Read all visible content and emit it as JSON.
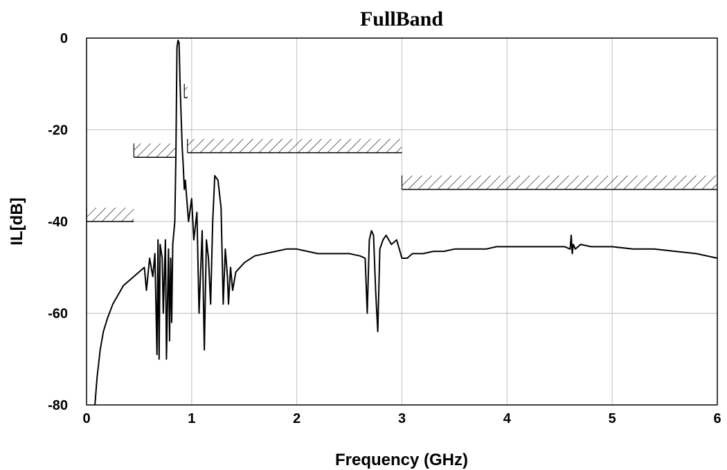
{
  "chart_data": {
    "type": "line",
    "title": "FullBand",
    "xlabel": "Frequency (GHz)",
    "ylabel": "IL[dB]",
    "xlim": [
      0,
      6
    ],
    "ylim": [
      -80,
      0
    ],
    "grid": true,
    "x_ticks": [
      0,
      1,
      2,
      3,
      4,
      5,
      6
    ],
    "x_tick_labels": [
      "0",
      "1",
      "2",
      "3",
      "4",
      "5",
      "6"
    ],
    "y_ticks": [
      0,
      -20,
      -40,
      -60,
      -80
    ],
    "y_tick_labels": [
      "0",
      "-20",
      "-40",
      "-60",
      "-80"
    ],
    "series": [
      {
        "values_desc": "",
        "x": [
          0.08,
          0.1,
          0.13,
          0.16,
          0.2,
          0.25,
          0.3,
          0.35,
          0.4,
          0.45,
          0.5,
          0.55,
          0.57,
          0.6,
          0.63,
          0.65,
          0.67,
          0.68,
          0.69,
          0.7,
          0.72,
          0.73,
          0.75,
          0.76,
          0.78,
          0.79,
          0.8,
          0.81,
          0.82,
          0.84,
          0.85,
          0.86,
          0.87,
          0.88,
          0.89,
          0.9,
          0.91,
          0.92,
          0.93,
          0.94,
          0.95,
          0.97,
          1.0,
          1.02,
          1.05,
          1.07,
          1.1,
          1.12,
          1.14,
          1.16,
          1.18,
          1.2,
          1.22,
          1.25,
          1.28,
          1.3,
          1.32,
          1.34,
          1.35,
          1.37,
          1.39,
          1.42,
          1.46,
          1.5,
          1.6,
          1.7,
          1.8,
          1.9,
          2.0,
          2.1,
          2.2,
          2.3,
          2.4,
          2.5,
          2.6,
          2.65,
          2.67,
          2.69,
          2.71,
          2.73,
          2.75,
          2.77,
          2.79,
          2.82,
          2.85,
          2.9,
          2.95,
          3.0,
          3.05,
          3.1,
          3.2,
          3.3,
          3.4,
          3.5,
          3.6,
          3.7,
          3.8,
          3.9,
          4.0,
          4.2,
          4.4,
          4.55,
          4.6,
          4.61,
          4.62,
          4.63,
          4.65,
          4.7,
          4.8,
          5.0,
          5.2,
          5.4,
          5.6,
          5.8,
          6.0
        ],
        "y": [
          -80,
          -74,
          -68,
          -64,
          -61,
          -58,
          -56,
          -54,
          -53,
          -52,
          -51,
          -50,
          -55,
          -48,
          -52,
          -47,
          -69,
          -44,
          -70,
          -45,
          -48,
          -60,
          -44,
          -70,
          -46,
          -66,
          -48,
          -62,
          -45,
          -40,
          -25,
          -2,
          -0.5,
          -1,
          -10,
          -17,
          -24,
          -28,
          -33,
          -31,
          -34,
          -40,
          -35,
          -44,
          -38,
          -60,
          -42,
          -68,
          -44,
          -48,
          -58,
          -40,
          -30,
          -31,
          -37,
          -58,
          -46,
          -52,
          -58,
          -50,
          -55,
          -51,
          -50,
          -49,
          -47.5,
          -47,
          -46.5,
          -46,
          -46,
          -46.5,
          -47,
          -47,
          -47,
          -47,
          -47.5,
          -48,
          -60,
          -44,
          -42,
          -43,
          -55,
          -64,
          -46,
          -44,
          -43,
          -45,
          -44,
          -48,
          -48,
          -47,
          -47,
          -46.5,
          -46.5,
          -46,
          -46,
          -46,
          -46,
          -45.5,
          -45.5,
          -45.5,
          -45.5,
          -45.5,
          -46,
          -43,
          -47,
          -45,
          -46,
          -45,
          -45.5,
          -45.5,
          -46,
          -46,
          -46.5,
          -47,
          -48
        ]
      }
    ],
    "limit_masks": [
      {
        "x_start": 0.0,
        "x_end": 0.45,
        "y": -40
      },
      {
        "x_start": 0.45,
        "x_end": 0.85,
        "y": -26
      },
      {
        "x_start": 0.93,
        "x_end": 0.96,
        "y": -13
      },
      {
        "x_start": 0.96,
        "x_end": 3.0,
        "y": -25
      },
      {
        "x_start": 3.0,
        "x_end": 6.0,
        "y": -33
      }
    ],
    "colors": {
      "line": "#000000",
      "grid": "#bfbfbf",
      "frame": "#000000"
    }
  }
}
